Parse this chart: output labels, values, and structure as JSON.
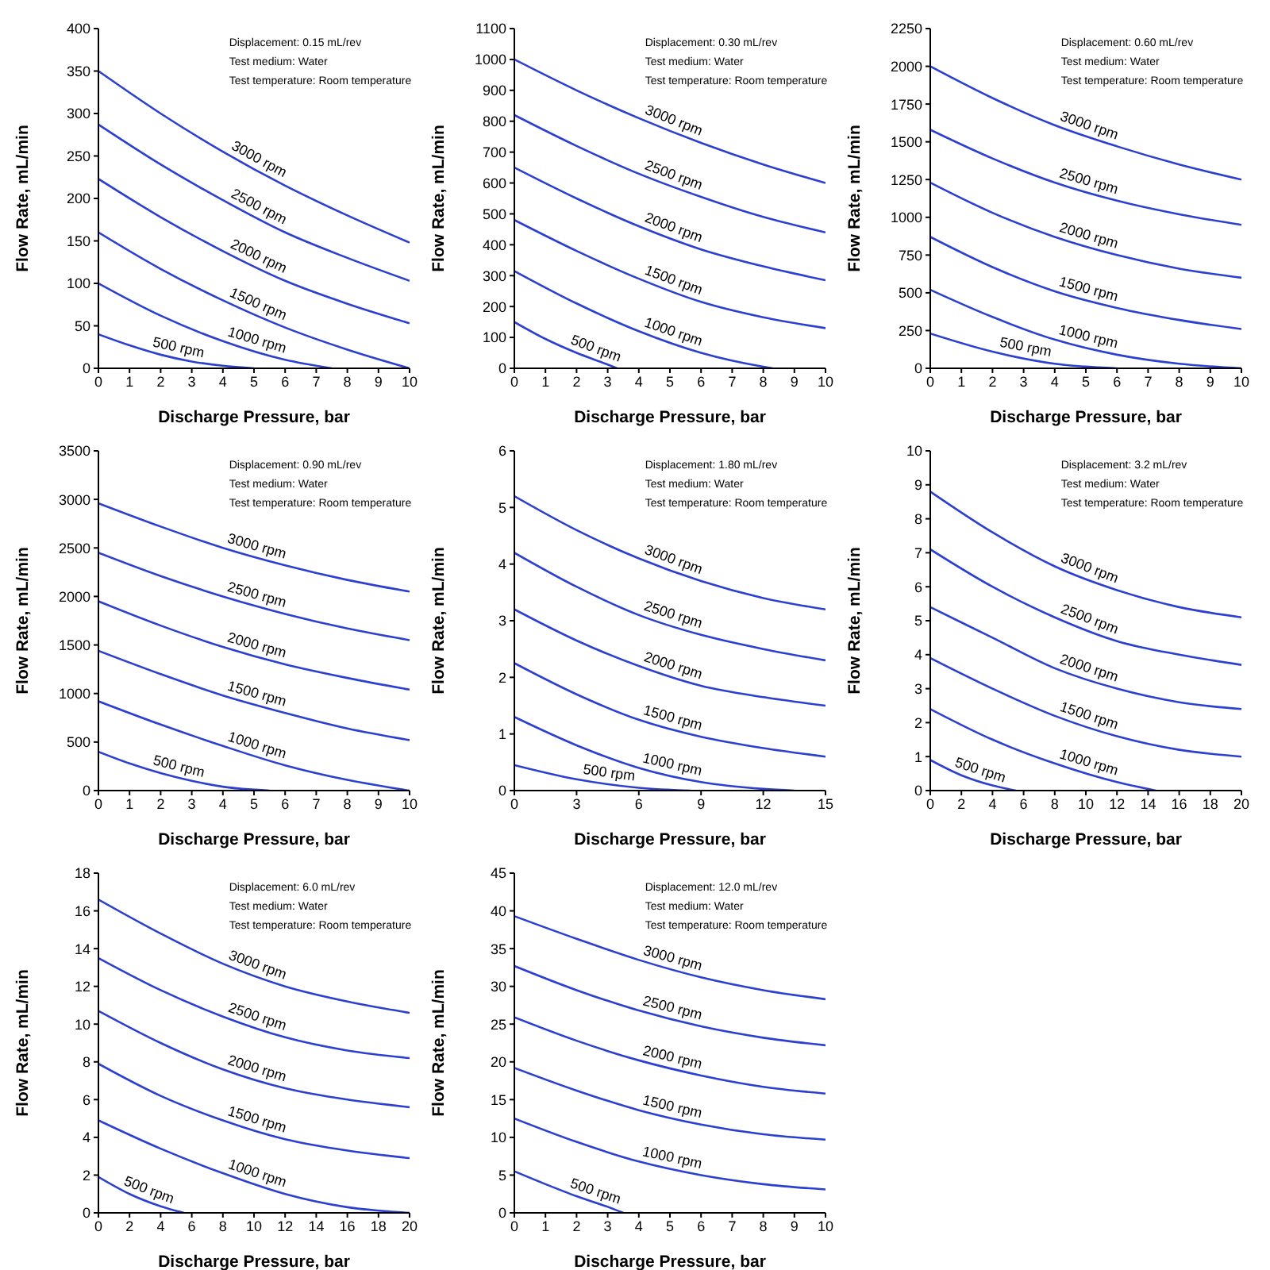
{
  "chart_data": [
    {
      "type": "line",
      "xlabel": "Discharge Pressure, bar",
      "ylabel": "Flow Rate, mL/min",
      "annotations": [
        "Displacement: 0.15 mL/rev",
        "Test medium: Water",
        "Test temperature: Room temperature"
      ],
      "xlim": [
        0,
        10
      ],
      "xticks": [
        0,
        1,
        2,
        3,
        4,
        5,
        6,
        7,
        8,
        9,
        10
      ],
      "ylim": [
        0,
        400
      ],
      "yticks": [
        0,
        50,
        100,
        150,
        200,
        250,
        300,
        350,
        400
      ],
      "series": [
        {
          "name": "3000 rpm",
          "color": "#2b3fd1",
          "x": [
            0,
            2,
            4,
            6,
            8,
            10
          ],
          "values": [
            350,
            300,
            255,
            215,
            180,
            148
          ]
        },
        {
          "name": "2500 rpm",
          "color": "#2b3fd1",
          "x": [
            0,
            2,
            4,
            6,
            8,
            10
          ],
          "values": [
            287,
            240,
            198,
            160,
            130,
            103
          ]
        },
        {
          "name": "2000 rpm",
          "color": "#2b3fd1",
          "x": [
            0,
            2,
            4,
            6,
            8,
            10
          ],
          "values": [
            223,
            178,
            138,
            103,
            76,
            53
          ]
        },
        {
          "name": "1500 rpm",
          "color": "#2b3fd1",
          "x": [
            0,
            2,
            4,
            6,
            8,
            10
          ],
          "values": [
            160,
            117,
            80,
            48,
            22,
            0
          ]
        },
        {
          "name": "1000 rpm",
          "color": "#2b3fd1",
          "x": [
            0,
            2,
            4,
            6,
            7.5
          ],
          "values": [
            100,
            62,
            32,
            10,
            0
          ]
        },
        {
          "name": "500 rpm",
          "color": "#2b3fd1",
          "x": [
            0,
            1,
            2,
            3,
            4,
            5
          ],
          "values": [
            40,
            27,
            16,
            8,
            3,
            0
          ]
        }
      ]
    },
    {
      "type": "line",
      "xlabel": "Discharge Pressure, bar",
      "ylabel": "Flow Rate, mL/min",
      "annotations": [
        "Displacement: 0.30 mL/rev",
        "Test medium: Water",
        "Test temperature: Room temperature"
      ],
      "xlim": [
        0,
        10
      ],
      "xticks": [
        0,
        1,
        2,
        3,
        4,
        5,
        6,
        7,
        8,
        9,
        10
      ],
      "ylim": [
        0,
        1100
      ],
      "yticks": [
        0,
        100,
        200,
        300,
        400,
        500,
        600,
        700,
        800,
        900,
        1000,
        1100
      ],
      "series": [
        {
          "name": "3000 rpm",
          "color": "#2b3fd1",
          "x": [
            0,
            2,
            4,
            6,
            8,
            10
          ],
          "values": [
            1000,
            900,
            810,
            730,
            660,
            600
          ]
        },
        {
          "name": "2500 rpm",
          "color": "#2b3fd1",
          "x": [
            0,
            2,
            4,
            6,
            8,
            10
          ],
          "values": [
            820,
            720,
            630,
            555,
            490,
            440
          ]
        },
        {
          "name": "2000 rpm",
          "color": "#2b3fd1",
          "x": [
            0,
            2,
            4,
            6,
            8,
            10
          ],
          "values": [
            650,
            550,
            460,
            385,
            330,
            285
          ]
        },
        {
          "name": "1500 rpm",
          "color": "#2b3fd1",
          "x": [
            0,
            2,
            4,
            6,
            8,
            10
          ],
          "values": [
            480,
            380,
            290,
            215,
            165,
            130
          ]
        },
        {
          "name": "1000 rpm",
          "color": "#2b3fd1",
          "x": [
            0,
            2,
            4,
            6,
            8,
            8.3
          ],
          "values": [
            315,
            210,
            120,
            50,
            5,
            0
          ]
        },
        {
          "name": "500 rpm",
          "color": "#2b3fd1",
          "x": [
            0,
            1,
            2,
            3,
            3.3
          ],
          "values": [
            150,
            95,
            50,
            12,
            0
          ]
        }
      ]
    },
    {
      "type": "line",
      "xlabel": "Discharge Pressure, bar",
      "ylabel": "Flow Rate, mL/min",
      "annotations": [
        "Displacement: 0.60 mL/rev",
        "Test medium: Water",
        "Test temperature: Room temperature"
      ],
      "xlim": [
        0,
        10
      ],
      "xticks": [
        0,
        1,
        2,
        3,
        4,
        5,
        6,
        7,
        8,
        9,
        10
      ],
      "ylim": [
        0,
        2250
      ],
      "yticks": [
        0,
        250,
        500,
        750,
        1000,
        1250,
        1500,
        1750,
        2000,
        2250
      ],
      "series": [
        {
          "name": "3000 rpm",
          "color": "#2b3fd1",
          "x": [
            0,
            2,
            4,
            6,
            8,
            10
          ],
          "values": [
            2000,
            1790,
            1610,
            1470,
            1350,
            1250
          ]
        },
        {
          "name": "2500 rpm",
          "color": "#2b3fd1",
          "x": [
            0,
            2,
            4,
            6,
            8,
            10
          ],
          "values": [
            1580,
            1390,
            1230,
            1110,
            1020,
            950
          ]
        },
        {
          "name": "2000 rpm",
          "color": "#2b3fd1",
          "x": [
            0,
            2,
            4,
            6,
            8,
            10
          ],
          "values": [
            1230,
            1030,
            870,
            750,
            660,
            600
          ]
        },
        {
          "name": "1500 rpm",
          "color": "#2b3fd1",
          "x": [
            0,
            2,
            4,
            6,
            8,
            10
          ],
          "values": [
            870,
            670,
            510,
            400,
            320,
            260
          ]
        },
        {
          "name": "1000 rpm",
          "color": "#2b3fd1",
          "x": [
            0,
            2,
            4,
            6,
            8,
            10
          ],
          "values": [
            520,
            340,
            190,
            90,
            30,
            0
          ]
        },
        {
          "name": "500 rpm",
          "color": "#2b3fd1",
          "x": [
            0,
            2,
            4,
            6
          ],
          "values": [
            230,
            110,
            30,
            0
          ]
        }
      ]
    },
    {
      "type": "line",
      "xlabel": "Discharge Pressure, bar",
      "ylabel": "Flow Rate, mL/min",
      "annotations": [
        "Displacement: 0.90 mL/rev",
        "Test medium: Water",
        "Test temperature: Room temperature"
      ],
      "xlim": [
        0,
        10
      ],
      "xticks": [
        0,
        1,
        2,
        3,
        4,
        5,
        6,
        7,
        8,
        9,
        10
      ],
      "ylim": [
        0,
        3500
      ],
      "yticks": [
        0,
        500,
        1000,
        1500,
        2000,
        2500,
        3000,
        3500
      ],
      "series": [
        {
          "name": "3000 rpm",
          "color": "#2b3fd1",
          "x": [
            0,
            2,
            4,
            6,
            8,
            10
          ],
          "values": [
            2960,
            2720,
            2500,
            2320,
            2170,
            2050
          ]
        },
        {
          "name": "2500 rpm",
          "color": "#2b3fd1",
          "x": [
            0,
            2,
            4,
            6,
            8,
            10
          ],
          "values": [
            2450,
            2210,
            2000,
            1820,
            1670,
            1550
          ]
        },
        {
          "name": "2000 rpm",
          "color": "#2b3fd1",
          "x": [
            0,
            2,
            4,
            6,
            8,
            10
          ],
          "values": [
            1950,
            1700,
            1480,
            1300,
            1160,
            1040
          ]
        },
        {
          "name": "1500 rpm",
          "color": "#2b3fd1",
          "x": [
            0,
            2,
            4,
            6,
            8,
            10
          ],
          "values": [
            1440,
            1200,
            980,
            800,
            640,
            520
          ]
        },
        {
          "name": "1000 rpm",
          "color": "#2b3fd1",
          "x": [
            0,
            2,
            4,
            6,
            8,
            10
          ],
          "values": [
            920,
            680,
            460,
            260,
            110,
            0
          ]
        },
        {
          "name": "500 rpm",
          "color": "#2b3fd1",
          "x": [
            0,
            1,
            2,
            3,
            4,
            5.5
          ],
          "values": [
            400,
            280,
            180,
            100,
            40,
            0
          ]
        }
      ]
    },
    {
      "type": "line",
      "xlabel": "Discharge Pressure, bar",
      "ylabel": "Flow Rate, mL/min",
      "annotations": [
        "Displacement: 1.80 mL/rev",
        "Test medium: Water",
        "Test temperature: Room temperature"
      ],
      "xlim": [
        0,
        15
      ],
      "xticks": [
        0,
        3,
        6,
        9,
        12,
        15
      ],
      "ylim": [
        0,
        6
      ],
      "yticks": [
        0,
        1,
        2,
        3,
        4,
        5,
        6
      ],
      "series": [
        {
          "name": "3000 rpm",
          "color": "#2b3fd1",
          "x": [
            0,
            3,
            6,
            9,
            12,
            15
          ],
          "values": [
            5.2,
            4.6,
            4.1,
            3.7,
            3.4,
            3.2
          ]
        },
        {
          "name": "2500 rpm",
          "color": "#2b3fd1",
          "x": [
            0,
            3,
            6,
            9,
            12,
            15
          ],
          "values": [
            4.2,
            3.6,
            3.1,
            2.75,
            2.5,
            2.3
          ]
        },
        {
          "name": "2000 rpm",
          "color": "#2b3fd1",
          "x": [
            0,
            3,
            6,
            9,
            12,
            15
          ],
          "values": [
            3.2,
            2.65,
            2.2,
            1.85,
            1.65,
            1.5
          ]
        },
        {
          "name": "1500 rpm",
          "color": "#2b3fd1",
          "x": [
            0,
            3,
            6,
            9,
            12,
            15
          ],
          "values": [
            2.25,
            1.7,
            1.25,
            0.95,
            0.75,
            0.6
          ]
        },
        {
          "name": "1000 rpm",
          "color": "#2b3fd1",
          "x": [
            0,
            3,
            6,
            9,
            12,
            13.5
          ],
          "values": [
            1.3,
            0.8,
            0.4,
            0.15,
            0.03,
            0
          ]
        },
        {
          "name": "500 rpm",
          "color": "#2b3fd1",
          "x": [
            0,
            3,
            6,
            8.5
          ],
          "values": [
            0.45,
            0.2,
            0.05,
            0
          ]
        }
      ]
    },
    {
      "type": "line",
      "xlabel": "Discharge Pressure, bar",
      "ylabel": "Flow Rate, mL/min",
      "annotations": [
        "Displacement: 3.2 mL/rev",
        "Test medium: Water",
        "Test temperature: Room temperature"
      ],
      "xlim": [
        0,
        20
      ],
      "xticks": [
        0,
        2,
        4,
        6,
        8,
        10,
        12,
        14,
        16,
        18,
        20
      ],
      "ylim": [
        0,
        10
      ],
      "yticks": [
        0,
        1,
        2,
        3,
        4,
        5,
        6,
        7,
        8,
        9,
        10
      ],
      "series": [
        {
          "name": "3000 rpm",
          "color": "#2b3fd1",
          "x": [
            0,
            4,
            8,
            12,
            16,
            20
          ],
          "values": [
            8.8,
            7.6,
            6.6,
            5.9,
            5.4,
            5.1
          ]
        },
        {
          "name": "2500 rpm",
          "color": "#2b3fd1",
          "x": [
            0,
            4,
            8,
            12,
            16,
            20
          ],
          "values": [
            7.1,
            6.0,
            5.1,
            4.4,
            4.0,
            3.7
          ]
        },
        {
          "name": "2000 rpm",
          "color": "#2b3fd1",
          "x": [
            0,
            4,
            8,
            12,
            16,
            20
          ],
          "values": [
            5.4,
            4.5,
            3.6,
            3.0,
            2.6,
            2.4
          ]
        },
        {
          "name": "1500 rpm",
          "color": "#2b3fd1",
          "x": [
            0,
            4,
            8,
            12,
            16,
            20
          ],
          "values": [
            3.9,
            3.0,
            2.2,
            1.6,
            1.2,
            1.0
          ]
        },
        {
          "name": "1000 rpm",
          "color": "#2b3fd1",
          "x": [
            0,
            4,
            8,
            12,
            14.5
          ],
          "values": [
            2.4,
            1.5,
            0.8,
            0.25,
            0
          ]
        },
        {
          "name": "500 rpm",
          "color": "#2b3fd1",
          "x": [
            0,
            2,
            4,
            5.5
          ],
          "values": [
            0.9,
            0.45,
            0.15,
            0
          ]
        }
      ]
    },
    {
      "type": "line",
      "xlabel": "Discharge Pressure, bar",
      "ylabel": "Flow Rate, mL/min",
      "annotations": [
        "Displacement: 6.0 mL/rev",
        "Test medium: Water",
        "Test temperature: Room temperature"
      ],
      "xlim": [
        0,
        20
      ],
      "xticks": [
        0,
        2,
        4,
        6,
        8,
        10,
        12,
        14,
        16,
        18,
        20
      ],
      "ylim": [
        0,
        18
      ],
      "yticks": [
        0,
        2,
        4,
        6,
        8,
        10,
        12,
        14,
        16,
        18
      ],
      "series": [
        {
          "name": "3000 rpm",
          "color": "#2b3fd1",
          "x": [
            0,
            4,
            8,
            12,
            16,
            20
          ],
          "values": [
            16.6,
            14.8,
            13.2,
            12.0,
            11.2,
            10.6
          ]
        },
        {
          "name": "2500 rpm",
          "color": "#2b3fd1",
          "x": [
            0,
            4,
            8,
            12,
            16,
            20
          ],
          "values": [
            13.5,
            11.8,
            10.4,
            9.3,
            8.6,
            8.2
          ]
        },
        {
          "name": "2000 rpm",
          "color": "#2b3fd1",
          "x": [
            0,
            4,
            8,
            12,
            16,
            20
          ],
          "values": [
            10.7,
            9.0,
            7.6,
            6.6,
            6.0,
            5.6
          ]
        },
        {
          "name": "1500 rpm",
          "color": "#2b3fd1",
          "x": [
            0,
            4,
            8,
            12,
            16,
            20
          ],
          "values": [
            7.9,
            6.2,
            4.9,
            3.9,
            3.3,
            2.9
          ]
        },
        {
          "name": "1000 rpm",
          "color": "#2b3fd1",
          "x": [
            0,
            4,
            8,
            12,
            16,
            20
          ],
          "values": [
            4.9,
            3.4,
            2.1,
            1.0,
            0.3,
            0
          ]
        },
        {
          "name": "500 rpm",
          "color": "#2b3fd1",
          "x": [
            0,
            2,
            4,
            5.5
          ],
          "values": [
            1.9,
            1.0,
            0.35,
            0
          ]
        }
      ]
    },
    {
      "type": "line",
      "xlabel": "Discharge Pressure, bar",
      "ylabel": "Flow Rate, mL/min",
      "annotations": [
        "Displacement: 12.0 mL/rev",
        "Test medium: Water",
        "Test temperature: Room temperature"
      ],
      "xlim": [
        0,
        10
      ],
      "xticks": [
        0,
        1,
        2,
        3,
        4,
        5,
        6,
        7,
        8,
        9,
        10
      ],
      "ylim": [
        0,
        45
      ],
      "yticks": [
        0,
        5,
        10,
        15,
        20,
        25,
        30,
        35,
        40,
        45
      ],
      "series": [
        {
          "name": "3000 rpm",
          "color": "#2b3fd1",
          "x": [
            0,
            2,
            4,
            6,
            8,
            10
          ],
          "values": [
            39.3,
            36.3,
            33.5,
            31.2,
            29.5,
            28.3
          ]
        },
        {
          "name": "2500 rpm",
          "color": "#2b3fd1",
          "x": [
            0,
            2,
            4,
            6,
            8,
            10
          ],
          "values": [
            32.7,
            29.5,
            26.8,
            24.7,
            23.2,
            22.2
          ]
        },
        {
          "name": "2000 rpm",
          "color": "#2b3fd1",
          "x": [
            0,
            2,
            4,
            6,
            8,
            10
          ],
          "values": [
            25.9,
            22.8,
            20.2,
            18.2,
            16.7,
            15.8
          ]
        },
        {
          "name": "1500 rpm",
          "color": "#2b3fd1",
          "x": [
            0,
            2,
            4,
            6,
            8,
            10
          ],
          "values": [
            19.2,
            16.2,
            13.6,
            11.7,
            10.4,
            9.7
          ]
        },
        {
          "name": "1000 rpm",
          "color": "#2b3fd1",
          "x": [
            0,
            2,
            4,
            6,
            8,
            10
          ],
          "values": [
            12.5,
            9.4,
            6.8,
            5.0,
            3.8,
            3.1
          ]
        },
        {
          "name": "500 rpm",
          "color": "#2b3fd1",
          "x": [
            0,
            1,
            2,
            3,
            3.5
          ],
          "values": [
            5.5,
            3.8,
            2.2,
            0.8,
            0
          ]
        }
      ]
    }
  ]
}
